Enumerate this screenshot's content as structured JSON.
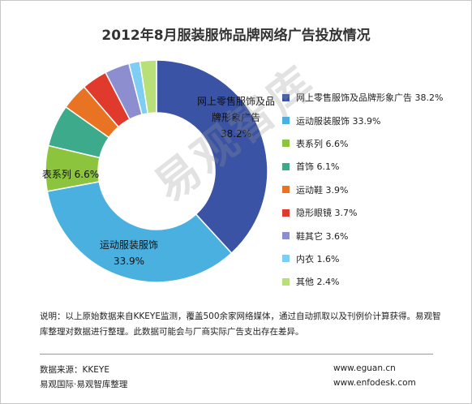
{
  "chart_data": {
    "type": "pie",
    "title": "2012年8月服装服饰品牌网络广告投放情况",
    "slices": [
      {
        "name": "网上零售服饰及品牌形象广告",
        "value": 38.2,
        "label": "38.2%",
        "color": "#3a53a4"
      },
      {
        "name": "运动服装服饰",
        "value": 33.9,
        "label": "33.9%",
        "color": "#4ab0e0"
      },
      {
        "name": "表系列",
        "value": 6.6,
        "label": "6.6%",
        "color": "#8cc43e"
      },
      {
        "name": "首饰",
        "value": 6.1,
        "label": "6.1%",
        "color": "#3daa8c"
      },
      {
        "name": "运动鞋",
        "value": 3.9,
        "label": "3.9%",
        "color": "#e87423"
      },
      {
        "name": "隐形眼镜",
        "value": 3.7,
        "label": "3.7%",
        "color": "#e03a2c"
      },
      {
        "name": "鞋其它",
        "value": 3.6,
        "label": "3.6%",
        "color": "#8c8ed0"
      },
      {
        "name": "内衣",
        "value": 1.6,
        "label": "1.6%",
        "color": "#7ecdf2"
      },
      {
        "name": "其他",
        "value": 2.4,
        "label": "2.4%",
        "color": "#b8df78"
      }
    ],
    "inner_labels": [
      {
        "name_lines": [
          "网上零售服饰及品",
          "牌形象广告"
        ],
        "value": "38.2%"
      },
      {
        "name_lines": [
          "运动服装服饰"
        ],
        "value": "33.9%"
      },
      {
        "name_lines": [
          "表系列"
        ],
        "value": "6.6%"
      }
    ],
    "legend_position": "right",
    "hole": "donut"
  },
  "note": "说明：以上原始数据来自KKEYE监测，覆盖500余家网络媒体，通过自动抓取以及刊例价计算获得。易观智库整理对数据进行整理。此数据可能会与厂商实际广告支出存在差异。",
  "footer": {
    "source": "数据来源：KKEYE",
    "org": "易观国际·易观智库整理",
    "site1": "www.eguan.cn",
    "site2": "www.enfodesk.com"
  },
  "watermark": "易观智库"
}
